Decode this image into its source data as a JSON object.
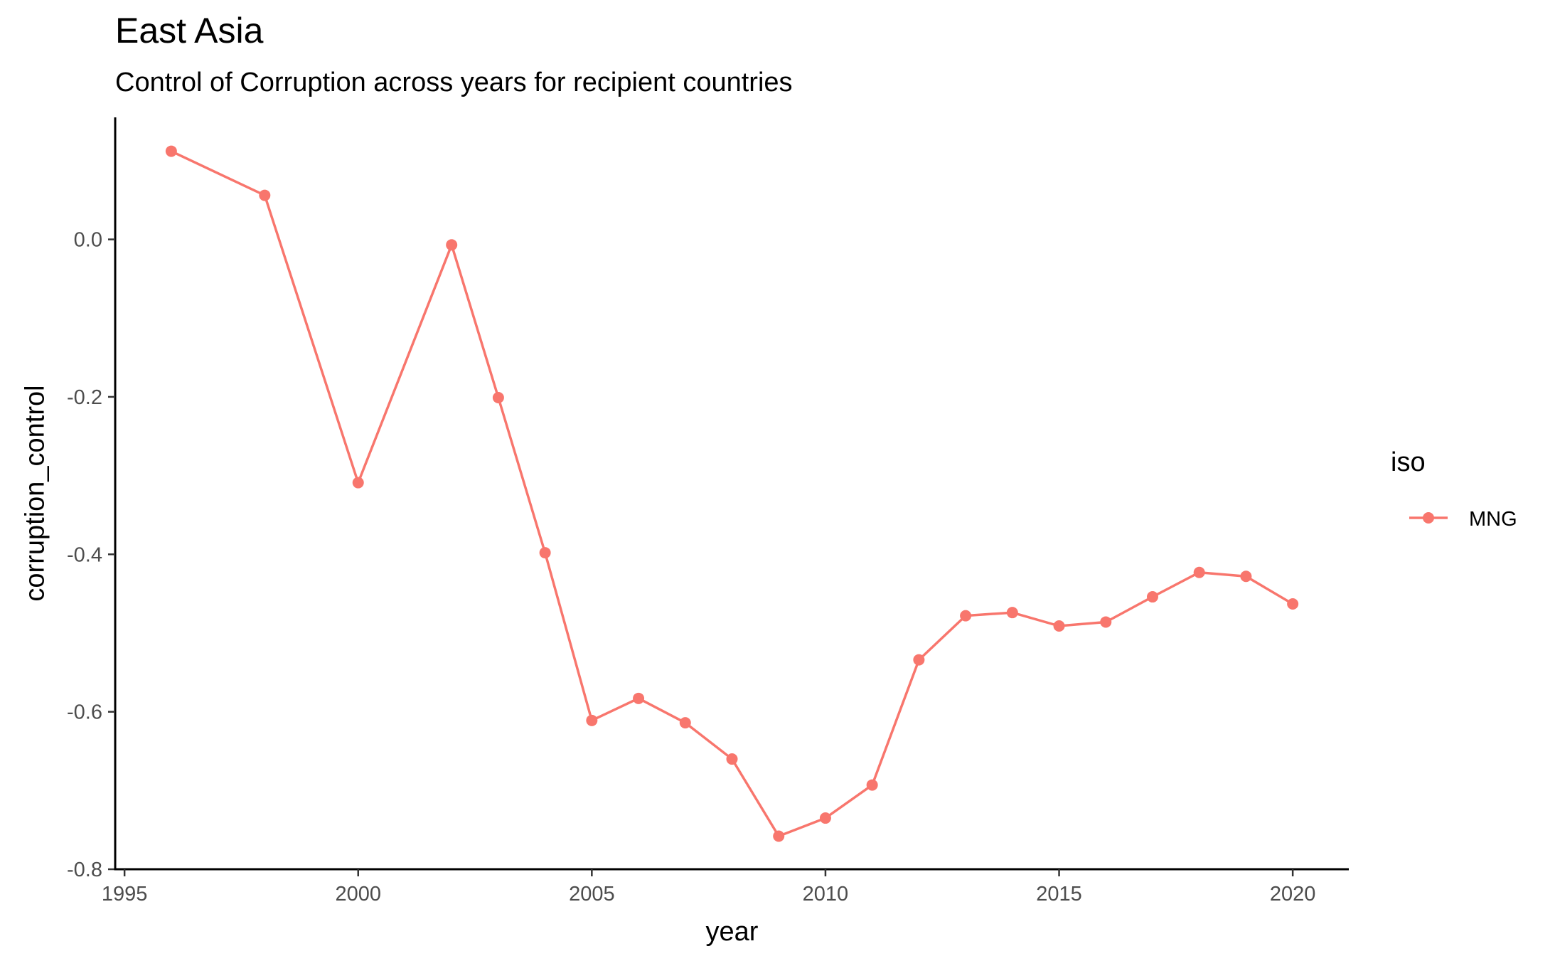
{
  "chart_data": {
    "type": "line",
    "title": "East Asia",
    "subtitle": "Control of Corruption across years for recipient countries",
    "xlabel": "year",
    "ylabel": "corruption_control",
    "xlim": [
      1994.8,
      2021.2
    ],
    "ylim": [
      -0.8,
      0.155
    ],
    "x_ticks": [
      1995,
      2000,
      2005,
      2010,
      2015,
      2020
    ],
    "y_ticks": [
      0.0,
      -0.2,
      -0.4,
      -0.6,
      -0.8
    ],
    "y_tick_labels": [
      "0.0",
      "-0.2",
      "-0.4",
      "-0.6",
      "-0.8"
    ],
    "grid": false,
    "legend": {
      "title": "iso",
      "placement": "right"
    },
    "series": [
      {
        "name": "MNG",
        "color": "#F8766D",
        "x": [
          1996,
          1998,
          2000,
          2002,
          2003,
          2004,
          2005,
          2006,
          2007,
          2008,
          2009,
          2010,
          2011,
          2012,
          2013,
          2014,
          2015,
          2016,
          2017,
          2018,
          2019,
          2020
        ],
        "y": [
          0.112,
          0.056,
          -0.309,
          -0.007,
          -0.201,
          -0.398,
          -0.611,
          -0.583,
          -0.614,
          -0.66,
          -0.758,
          -0.735,
          -0.693,
          -0.534,
          -0.478,
          -0.474,
          -0.491,
          -0.486,
          -0.454,
          -0.423,
          -0.428,
          -0.463
        ]
      }
    ]
  }
}
